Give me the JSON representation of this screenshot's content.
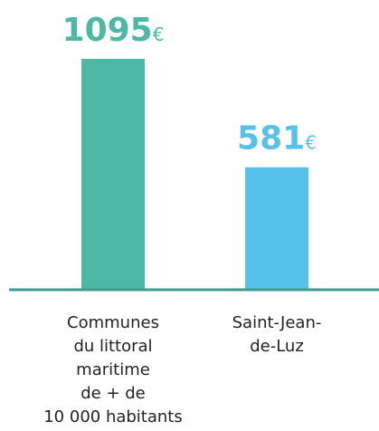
{
  "chart_data": {
    "type": "bar",
    "categories": [
      "Communes\ndu littoral\nmaritime\nde + de\n10 000 habitants",
      "Saint-Jean-\nde-Luz"
    ],
    "values": [
      1095,
      581
    ],
    "unit": "€",
    "colors": [
      "#4db8a4",
      "#56c1ea"
    ]
  }
}
